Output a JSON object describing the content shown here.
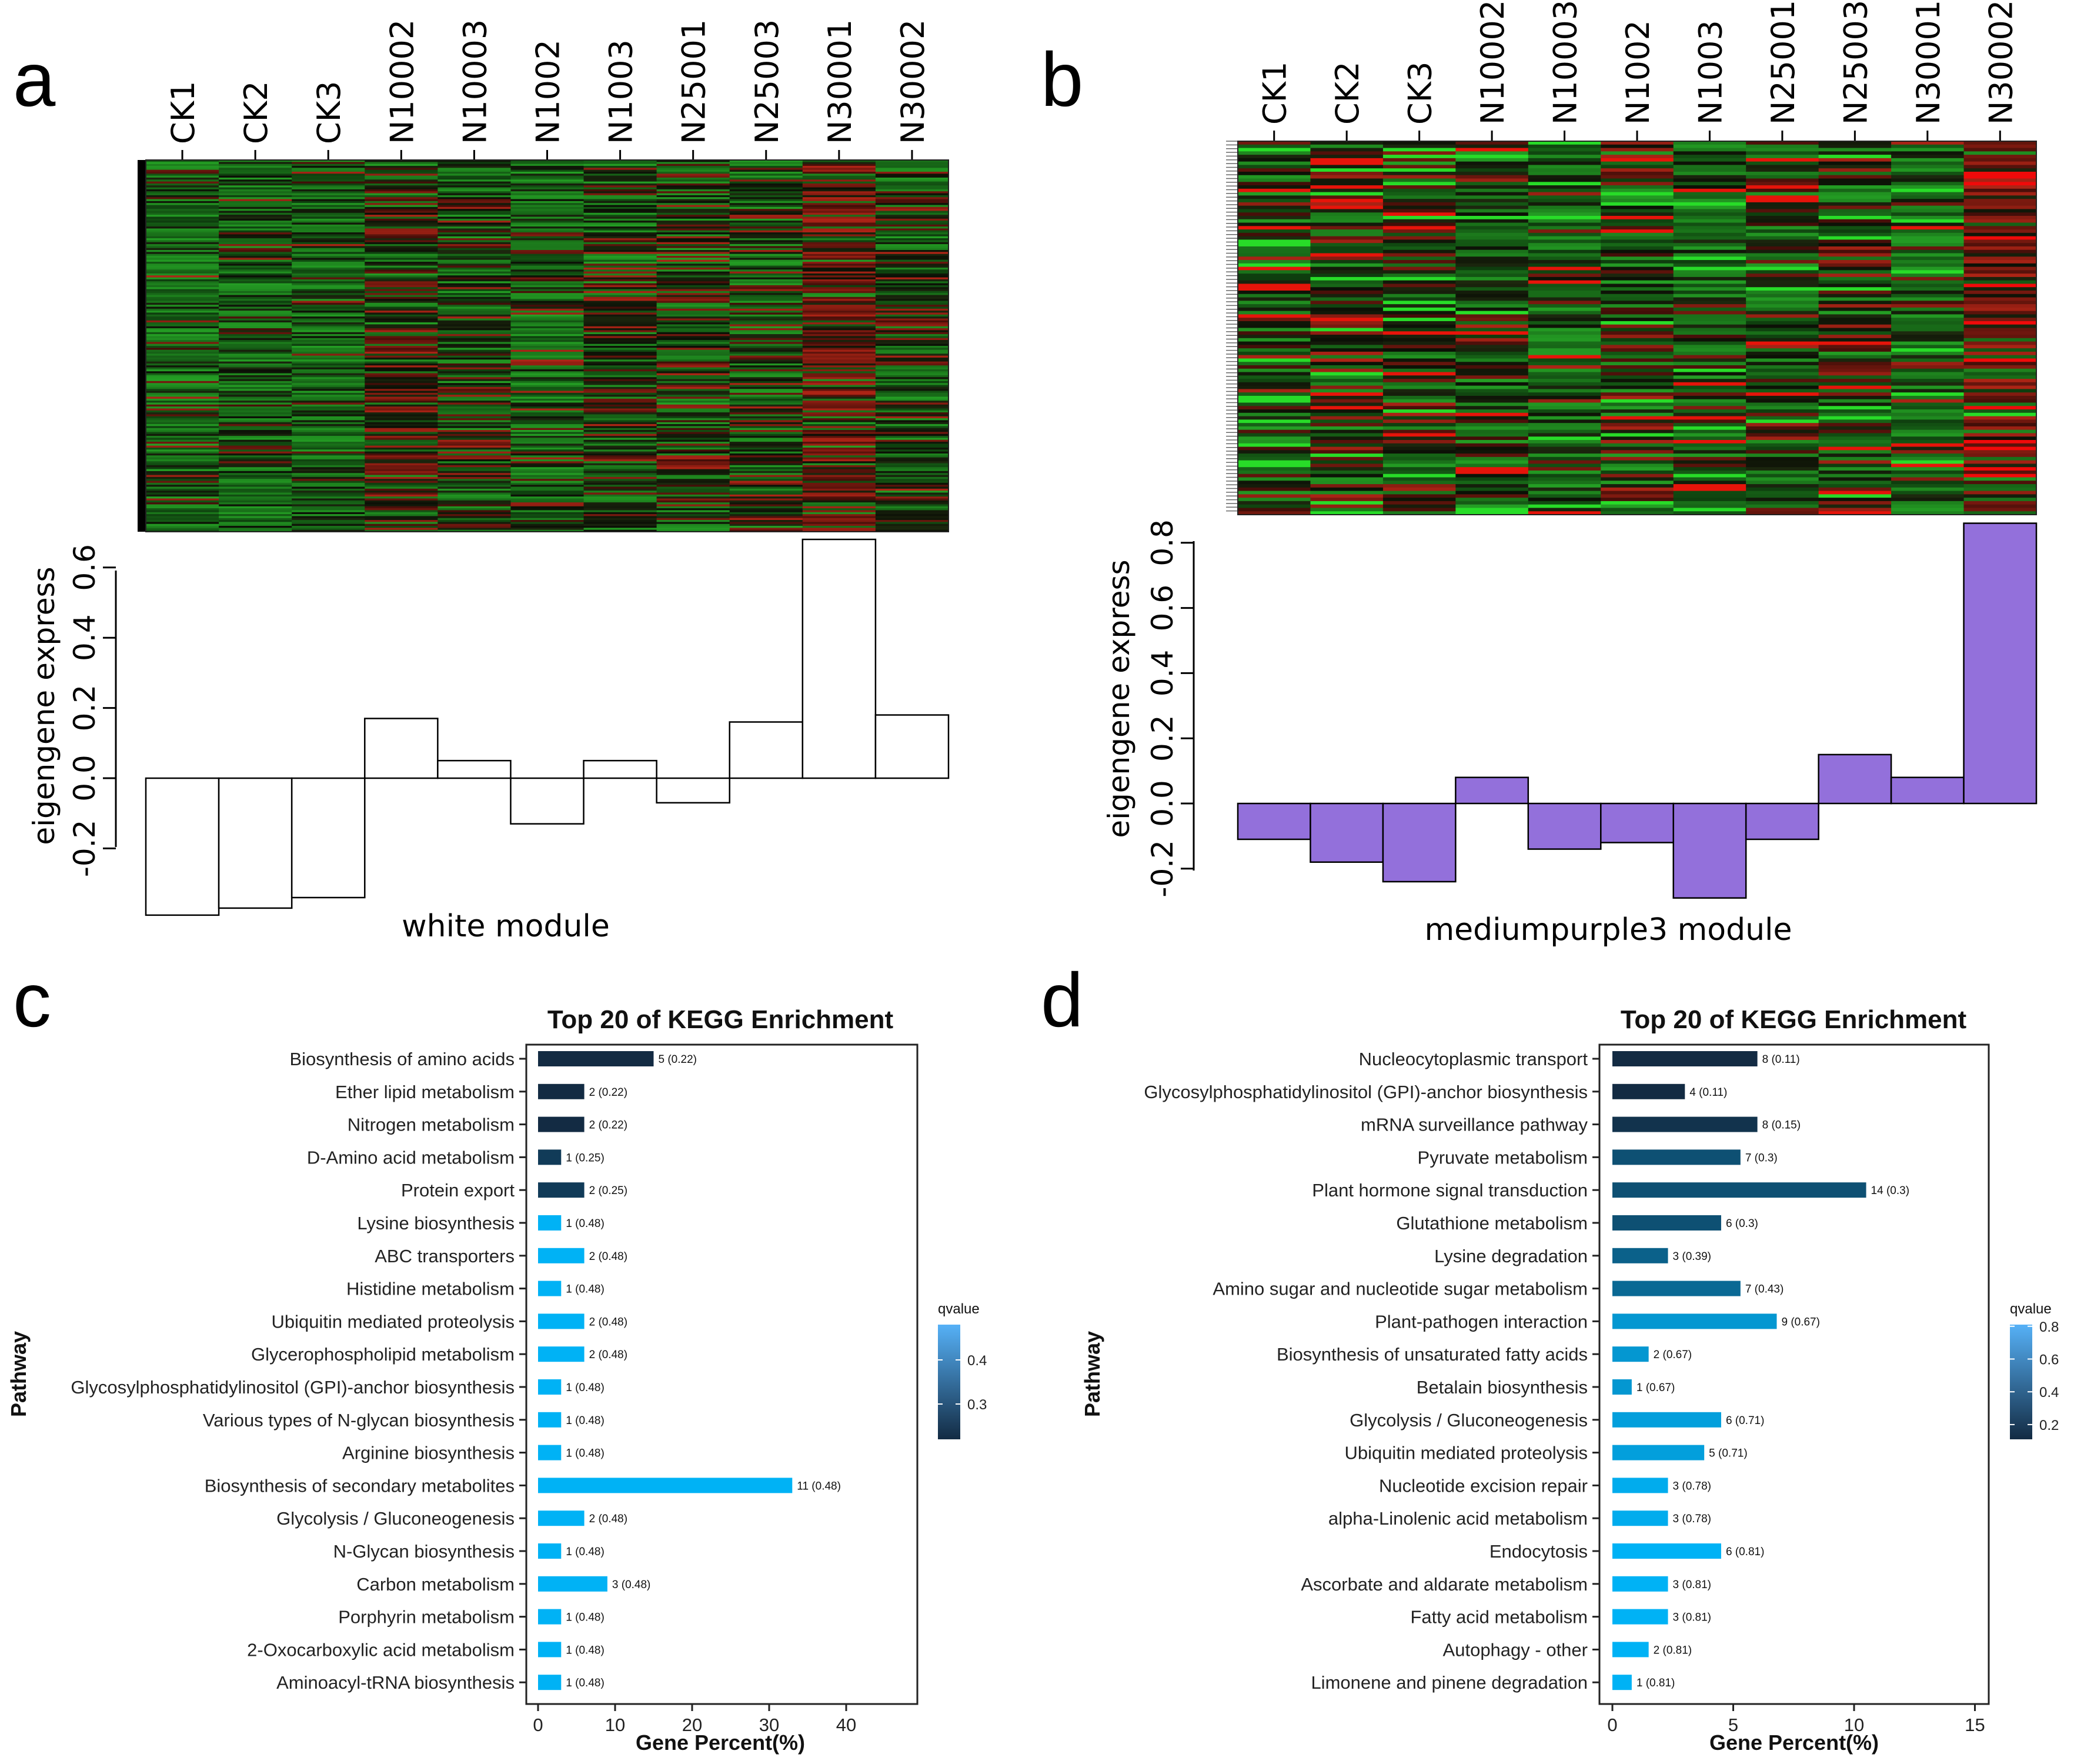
{
  "chart_data": [
    {
      "id": "a",
      "panel_label": "a",
      "type": "heatmap+bar",
      "samples": [
        "CK1",
        "CK2",
        "CK3",
        "N10002",
        "N10003",
        "N1002",
        "N1003",
        "N25001",
        "N25003",
        "N30001",
        "N30002"
      ],
      "heatmap_column_tone": [
        "green",
        "green",
        "green",
        "darkred",
        "dark",
        "green",
        "dark",
        "dark",
        "dark",
        "red",
        "dark"
      ],
      "eigengene_values": [
        -0.39,
        -0.37,
        -0.34,
        0.17,
        0.05,
        -0.13,
        0.05,
        -0.07,
        0.16,
        0.68,
        0.18
      ],
      "ylabel": "eigengene express",
      "yticks": [
        "-0.2",
        "0.0",
        "0.2",
        "0.4",
        "0.6"
      ],
      "ylim": [
        -0.2,
        0.6
      ],
      "bar_color": "#ffffff",
      "module_label": "white module"
    },
    {
      "id": "b",
      "panel_label": "b",
      "type": "heatmap+bar",
      "samples": [
        "CK1",
        "CK2",
        "CK3",
        "N10002",
        "N10003",
        "N1002",
        "N1003",
        "N25001",
        "N25003",
        "N30001",
        "N30002"
      ],
      "heatmap_column_tone": [
        "dark",
        "mixed",
        "mixed",
        "dark",
        "green",
        "mixed",
        "green",
        "dark",
        "mixed",
        "green",
        "red"
      ],
      "eigengene_values": [
        -0.11,
        -0.18,
        -0.24,
        0.08,
        -0.14,
        -0.12,
        -0.29,
        -0.11,
        0.15,
        0.08,
        0.86
      ],
      "ylabel": "eigengene express",
      "yticks": [
        "-0.2",
        "0.0",
        "0.2",
        "0.4",
        "0.6",
        "0.8"
      ],
      "ylim": [
        -0.2,
        0.8
      ],
      "bar_color": "#9370db",
      "module_label": "mediumpurple3 module"
    },
    {
      "id": "c",
      "panel_label": "c",
      "type": "bar",
      "orientation": "horizontal",
      "title": "Top 20 of KEGG Enrichment",
      "xlabel": "Gene Percent(%)",
      "ylabel": "Pathway",
      "xticks": [
        "0",
        "10",
        "20",
        "30",
        "40"
      ],
      "xlim": [
        0,
        48
      ],
      "legend_title": "qvalue",
      "legend_ticks": [
        "0.4",
        "0.3"
      ],
      "legend_range": [
        0.22,
        0.48
      ],
      "categories": [
        "Biosynthesis of amino acids",
        "Ether lipid metabolism",
        "Nitrogen metabolism",
        "D-Amino acid metabolism",
        "Protein export",
        "Lysine biosynthesis",
        "ABC transporters",
        "Histidine metabolism",
        "Ubiquitin mediated proteolysis",
        "Glycerophospholipid metabolism",
        "Glycosylphosphatidylinositol (GPI)-anchor biosynthesis",
        "Various types of N-glycan biosynthesis",
        "Arginine biosynthesis",
        "Biosynthesis of secondary metabolites",
        "Glycolysis / Gluconeogenesis",
        "N-Glycan biosynthesis",
        "Carbon metabolism",
        "Porphyrin metabolism",
        "2-Oxocarboxylic acid metabolism",
        "Aminoacyl-tRNA biosynthesis"
      ],
      "values": [
        15,
        6,
        6,
        3,
        6,
        3,
        6,
        3,
        6,
        6,
        3,
        3,
        3,
        33,
        6,
        3,
        9,
        3,
        3,
        3
      ],
      "qvalues": [
        0.22,
        0.22,
        0.22,
        0.25,
        0.25,
        0.48,
        0.48,
        0.48,
        0.48,
        0.48,
        0.48,
        0.48,
        0.48,
        0.48,
        0.48,
        0.48,
        0.48,
        0.48,
        0.48,
        0.48
      ],
      "bar_labels": [
        "5 (0.22)",
        "2 (0.22)",
        "2 (0.22)",
        "1 (0.25)",
        "2 (0.25)",
        "1 (0.48)",
        "2 (0.48)",
        "1 (0.48)",
        "2 (0.48)",
        "2 (0.48)",
        "1 (0.48)",
        "1 (0.48)",
        "1 (0.48)",
        "11 (0.48)",
        "2 (0.48)",
        "1 (0.48)",
        "3 (0.48)",
        "1 (0.48)",
        "1 (0.48)",
        "1 (0.48)"
      ]
    },
    {
      "id": "d",
      "panel_label": "d",
      "type": "bar",
      "orientation": "horizontal",
      "title": "Top 20 of KEGG Enrichment",
      "xlabel": "Gene Percent(%)",
      "ylabel": "Pathway",
      "xticks": [
        "0",
        "5",
        "10",
        "15"
      ],
      "xlim": [
        0,
        15.5
      ],
      "legend_title": "qvalue",
      "legend_ticks": [
        "0.8",
        "0.6",
        "0.4",
        "0.2"
      ],
      "legend_range": [
        0.11,
        0.81
      ],
      "categories": [
        "Nucleocytoplasmic transport",
        "Glycosylphosphatidylinositol (GPI)-anchor biosynthesis",
        "mRNA surveillance pathway",
        "Pyruvate metabolism",
        "Plant hormone signal transduction",
        "Glutathione metabolism",
        "Lysine degradation",
        "Amino sugar and nucleotide sugar metabolism",
        "Plant-pathogen interaction",
        "Biosynthesis of unsaturated fatty acids",
        "Betalain biosynthesis",
        "Glycolysis / Gluconeogenesis",
        "Ubiquitin mediated proteolysis",
        "Nucleotide excision repair",
        "alpha-Linolenic acid metabolism",
        "Endocytosis",
        "Ascorbate and aldarate metabolism",
        "Fatty acid metabolism",
        "Autophagy - other",
        "Limonene and pinene degradation"
      ],
      "values": [
        6.0,
        3.0,
        6.0,
        5.3,
        10.5,
        4.5,
        2.3,
        5.3,
        6.8,
        1.5,
        0.8,
        4.5,
        3.8,
        2.3,
        2.3,
        4.5,
        2.3,
        2.3,
        1.5,
        0.8
      ],
      "qvalues": [
        0.11,
        0.11,
        0.15,
        0.3,
        0.3,
        0.3,
        0.39,
        0.43,
        0.67,
        0.67,
        0.67,
        0.71,
        0.71,
        0.78,
        0.78,
        0.81,
        0.81,
        0.81,
        0.81,
        0.81
      ],
      "bar_labels": [
        "8 (0.11)",
        "4 (0.11)",
        "8 (0.15)",
        "7 (0.3)",
        "14 (0.3)",
        "6 (0.3)",
        "3 (0.39)",
        "7 (0.43)",
        "9 (0.67)",
        "2 (0.67)",
        "1 (0.67)",
        "6 (0.71)",
        "5 (0.71)",
        "3 (0.78)",
        "3 (0.78)",
        "6 (0.81)",
        "3 (0.81)",
        "3 (0.81)",
        "2 (0.81)",
        "1 (0.81)"
      ]
    }
  ]
}
